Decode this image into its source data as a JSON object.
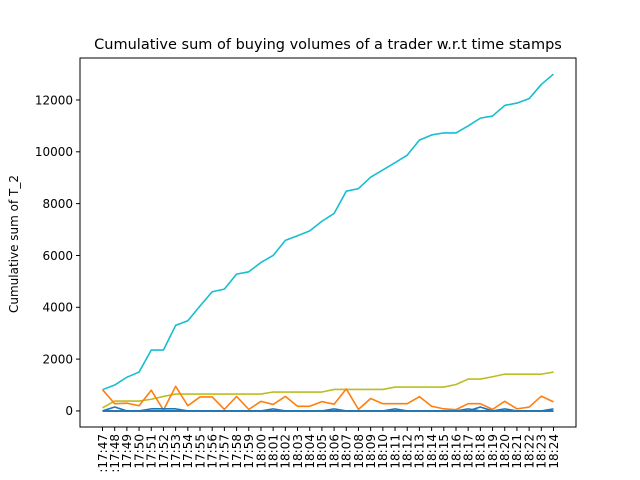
{
  "chart_data": {
    "type": "line",
    "title": "Cumulative sum of buying volumes of a trader w.r.t time stamps",
    "xlabel": "",
    "ylabel": "Cumulative sum of T_2",
    "ylim": [
      -620,
      13620
    ],
    "yticks": [
      0,
      2000,
      4000,
      6000,
      8000,
      10000,
      12000
    ],
    "categories": [
      "17:47",
      "17:48",
      "17:49",
      "17:50",
      "17:51",
      "17:52",
      "17:53",
      "17:54",
      "17:55",
      "17:56",
      "17:57",
      "17:58",
      "17:59",
      "18:00",
      "18:01",
      "18:02",
      "18:03",
      "18:04",
      "18:05",
      "18:06",
      "18:07",
      "18:08",
      "18:09",
      "18:10",
      "18:11",
      "18:12",
      "18:13",
      "18:14",
      "18:15",
      "18:16",
      "18:17",
      "18:18",
      "18:19",
      "18:20",
      "18:21",
      "18:22",
      "18:23",
      "18:24"
    ],
    "visible_tick_labels": [
      ":17:47",
      ":17:48",
      "17:49",
      "17:50",
      "17:51",
      "17:52",
      "17:53",
      "17:54",
      "17:55",
      "17:56",
      "17:57",
      "17:58",
      "17:59",
      "18:00",
      "18:01",
      "18:02",
      "18:03",
      "18:04",
      "18:05",
      "18:06",
      "18:07",
      "18:08",
      "18:09",
      "18:10",
      "18:11",
      "18:12",
      "18:13",
      "18:14",
      "18:15",
      "18:16",
      "18:17",
      "18:18",
      "18:19",
      "18:20",
      "18:21",
      "18:22",
      "18:23",
      "18:24"
    ],
    "grid": false,
    "legend": "none",
    "series": [
      {
        "color": "#17becf",
        "values": [
          820,
          1000,
          1300,
          1500,
          2350,
          2350,
          3300,
          3480,
          4050,
          4600,
          4700,
          5280,
          5370,
          5730,
          6000,
          6580,
          6760,
          6950,
          7320,
          7620,
          8480,
          8580,
          9020,
          9300,
          9580,
          9870,
          10450,
          10650,
          10730,
          10730,
          11000,
          11300,
          11380,
          11790,
          11880,
          12050,
          12600,
          13000
        ]
      },
      {
        "color": "#bcbd22",
        "values": [
          120,
          380,
          380,
          380,
          450,
          560,
          650,
          650,
          650,
          650,
          650,
          650,
          650,
          650,
          730,
          730,
          730,
          730,
          730,
          830,
          830,
          830,
          830,
          830,
          920,
          920,
          920,
          920,
          920,
          1020,
          1230,
          1230,
          1320,
          1420,
          1420,
          1420,
          1420,
          1500
        ]
      },
      {
        "color": "#ff7f0e",
        "values": [
          820,
          280,
          300,
          200,
          800,
          30,
          950,
          200,
          540,
          540,
          60,
          560,
          60,
          370,
          250,
          560,
          180,
          180,
          360,
          260,
          850,
          60,
          480,
          280,
          280,
          280,
          550,
          180,
          80,
          50,
          280,
          280,
          60,
          370,
          80,
          150,
          570,
          350
        ]
      },
      {
        "color": "#1f77b4",
        "values": [
          0,
          0,
          0,
          0,
          80,
          80,
          80,
          0,
          0,
          0,
          0,
          0,
          0,
          0,
          80,
          0,
          0,
          0,
          0,
          80,
          0,
          0,
          0,
          0,
          80,
          0,
          0,
          0,
          0,
          0,
          80,
          0,
          0,
          80,
          0,
          0,
          0,
          80
        ]
      },
      {
        "color": "#2ca02c",
        "values": [
          0,
          0,
          0,
          0,
          0,
          0,
          0,
          0,
          0,
          0,
          0,
          0,
          0,
          0,
          0,
          0,
          0,
          0,
          0,
          0,
          0,
          0,
          0,
          0,
          0,
          0,
          0,
          0,
          0,
          0,
          0,
          0,
          0,
          0,
          0,
          0,
          0,
          0
        ]
      },
      {
        "color": "#d62728",
        "values": [
          0,
          0,
          0,
          0,
          0,
          0,
          0,
          0,
          0,
          0,
          0,
          0,
          0,
          0,
          0,
          0,
          0,
          0,
          0,
          0,
          0,
          0,
          0,
          0,
          0,
          0,
          0,
          0,
          0,
          0,
          0,
          0,
          0,
          0,
          0,
          0,
          0,
          0
        ]
      },
      {
        "color": "#9467bd",
        "values": [
          0,
          0,
          0,
          0,
          0,
          0,
          0,
          0,
          0,
          0,
          0,
          0,
          0,
          0,
          0,
          0,
          0,
          0,
          0,
          0,
          0,
          0,
          0,
          0,
          0,
          0,
          0,
          0,
          0,
          0,
          0,
          0,
          0,
          0,
          0,
          0,
          0,
          0
        ]
      },
      {
        "color": "#1f77b4",
        "values": [
          0,
          150,
          0,
          0,
          0,
          0,
          0,
          0,
          0,
          0,
          0,
          0,
          0,
          0,
          0,
          0,
          0,
          0,
          0,
          0,
          0,
          0,
          0,
          0,
          0,
          0,
          0,
          0,
          0,
          0,
          0,
          0,
          0,
          0,
          0,
          0,
          0,
          0
        ]
      },
      {
        "color": "#1f77b4",
        "values": [
          0,
          0,
          0,
          0,
          0,
          0,
          0,
          0,
          0,
          0,
          0,
          0,
          0,
          0,
          0,
          0,
          0,
          0,
          0,
          0,
          0,
          0,
          0,
          0,
          0,
          0,
          0,
          0,
          0,
          0,
          0,
          150,
          0,
          0,
          0,
          0,
          0,
          0
        ]
      }
    ]
  }
}
